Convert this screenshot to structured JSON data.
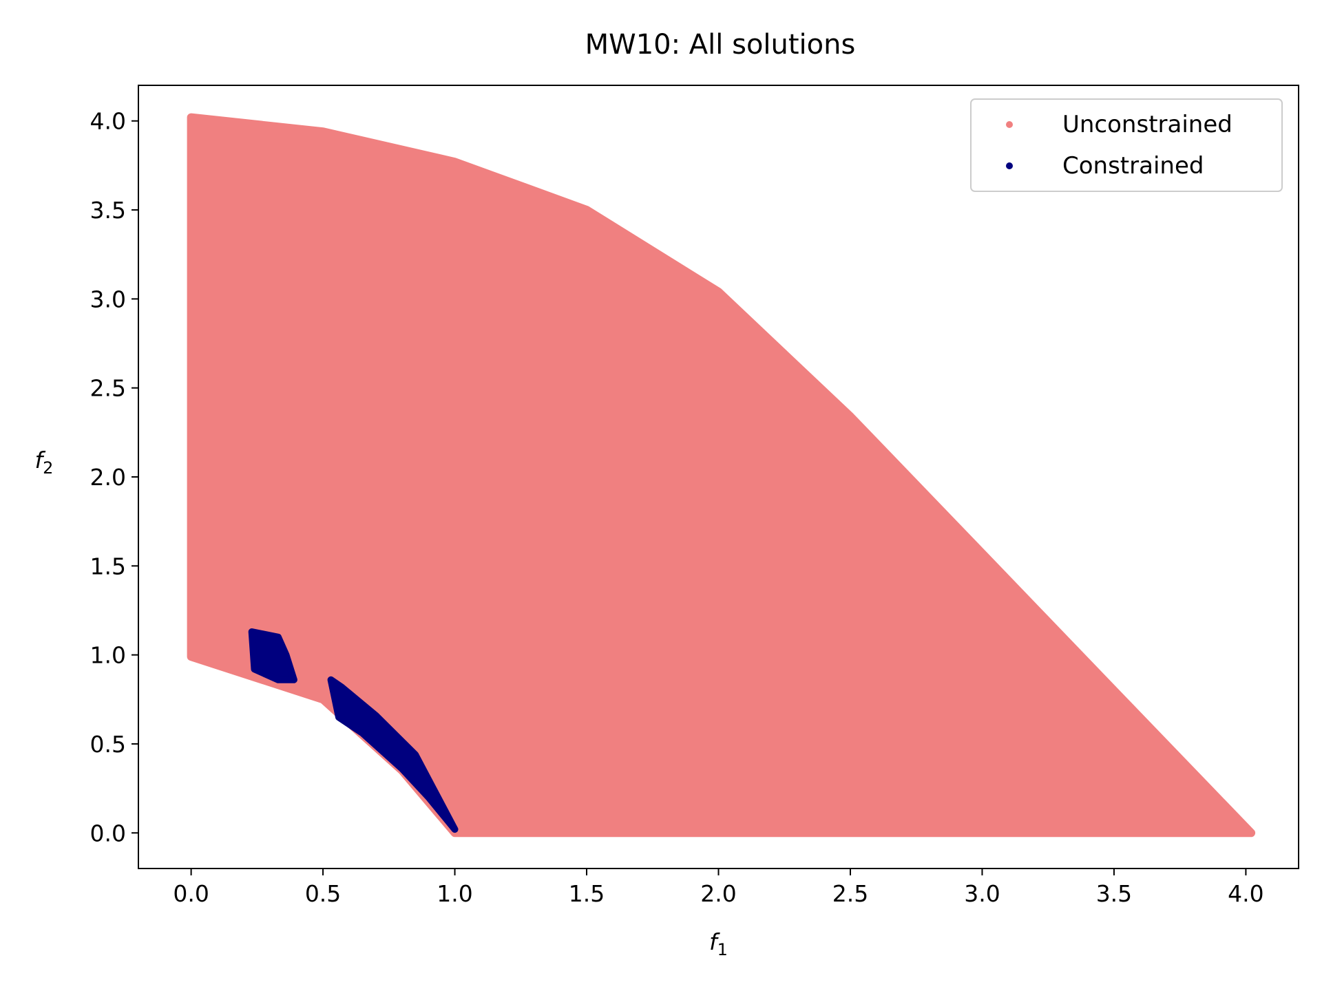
{
  "chart_data": {
    "type": "scatter",
    "title": "MW10: All solutions",
    "xlabel": "f",
    "xlabel_sub": "1",
    "ylabel": "f",
    "ylabel_sub": "2",
    "xlim": [
      -0.2,
      4.2
    ],
    "ylim": [
      -0.2,
      4.2
    ],
    "xticks": [
      "0.0",
      "0.5",
      "1.0",
      "1.5",
      "2.0",
      "2.5",
      "3.0",
      "3.5",
      "4.0"
    ],
    "yticks": [
      "0.0",
      "0.5",
      "1.0",
      "1.5",
      "2.0",
      "2.5",
      "3.0",
      "3.5",
      "4.0"
    ],
    "grid": false,
    "legend_position": "top-right",
    "series": [
      {
        "name": "Unconstrained",
        "color": "#f08080",
        "description_points": [
          [
            0.0,
            4.02
          ],
          [
            0.5,
            3.94
          ],
          [
            1.0,
            3.77
          ],
          [
            1.5,
            3.5
          ],
          [
            2.0,
            3.04
          ],
          [
            2.5,
            2.34
          ],
          [
            3.0,
            1.57
          ],
          [
            3.5,
            0.8
          ],
          [
            4.02,
            0.0
          ],
          [
            1.0,
            0.0
          ],
          [
            0.8,
            0.35
          ],
          [
            0.5,
            0.75
          ],
          [
            0.0,
            0.99
          ]
        ]
      },
      {
        "name": "Constrained",
        "color": "#00007f",
        "clusters": [
          [
            [
              0.23,
              1.13
            ],
            [
              0.33,
              1.1
            ],
            [
              0.36,
              1.0
            ],
            [
              0.39,
              0.86
            ],
            [
              0.33,
              0.86
            ],
            [
              0.24,
              0.92
            ]
          ],
          [
            [
              0.53,
              0.86
            ],
            [
              0.57,
              0.82
            ],
            [
              0.7,
              0.66
            ],
            [
              0.85,
              0.44
            ],
            [
              1.0,
              0.02
            ],
            [
              0.9,
              0.2
            ],
            [
              0.8,
              0.36
            ],
            [
              0.65,
              0.56
            ],
            [
              0.56,
              0.65
            ]
          ]
        ]
      }
    ]
  }
}
